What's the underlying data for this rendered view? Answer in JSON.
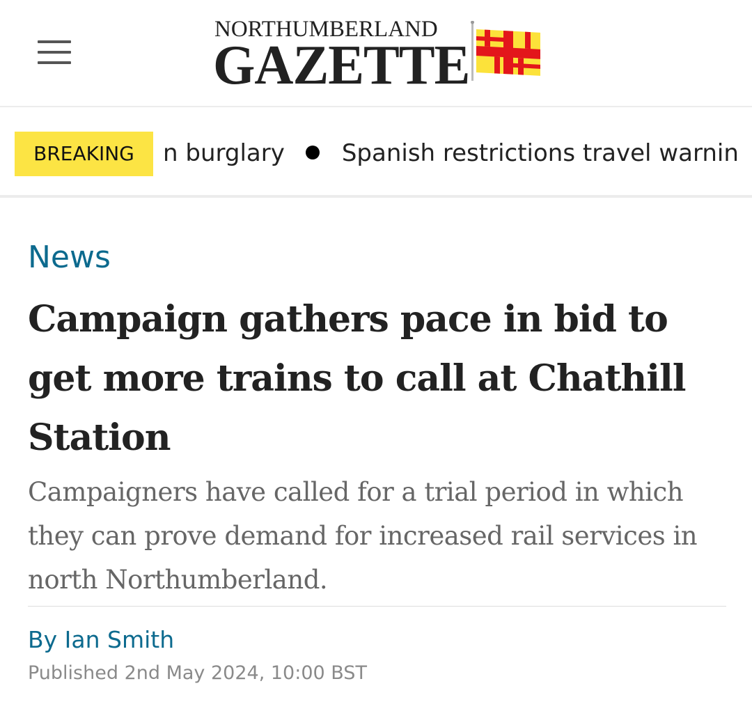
{
  "header": {
    "logo_top": "NORTHUMBERLAND",
    "logo_main": "GAZETTE",
    "menu_icon": "hamburger-menu-icon",
    "flag_colors": {
      "red": "#e3161b",
      "yellow": "#fce23a"
    }
  },
  "ticker": {
    "label": "BREAKING",
    "label_color": "#fce444",
    "items": [
      "n burglary",
      "Spanish restrictions travel warnin"
    ]
  },
  "article": {
    "section": "News",
    "section_color": "#0c6a8e",
    "headline": "Campaign gathers pace in bid to get more trains to call at Chathill Station",
    "standfirst": "Campaigners have called for a trial period in which they can prove demand for increased rail services in north Northumberland.",
    "byline": "By Ian Smith",
    "published": "Published 2nd May 2024, 10:00 BST"
  }
}
